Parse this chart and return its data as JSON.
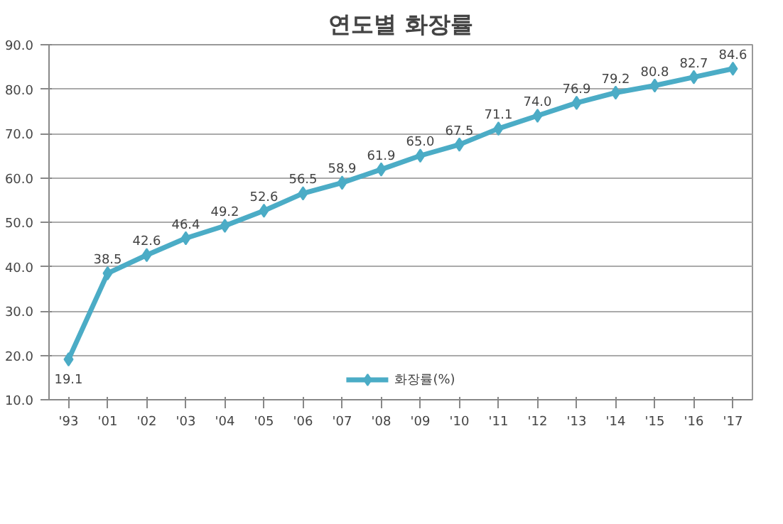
{
  "chart_data": {
    "type": "line",
    "title": "연도별 화장률",
    "categories": [
      "'93",
      "'01",
      "'02",
      "'03",
      "'04",
      "'05",
      "'06",
      "'07",
      "'08",
      "'09",
      "'10",
      "'11",
      "'12",
      "'13",
      "'14",
      "'15",
      "'16",
      "'17"
    ],
    "series": [
      {
        "name": "화장률(%)",
        "color": "#4bacc6",
        "values": [
          19.1,
          38.5,
          42.6,
          46.4,
          49.2,
          52.6,
          56.5,
          58.9,
          61.9,
          65.0,
          67.5,
          71.1,
          74.0,
          76.9,
          79.2,
          80.8,
          82.7,
          84.6
        ],
        "value_labels": [
          "19.1",
          "38.5",
          "42.6",
          "46.4",
          "49.2",
          "52.6",
          "56.5",
          "58.9",
          "61.9",
          "65.0",
          "67.5",
          "71.1",
          "74.0",
          "76.9",
          "79.2",
          "80.8",
          "82.7",
          "84.6"
        ]
      }
    ],
    "ylim": [
      10,
      90
    ],
    "yticks": [
      {
        "value": 10,
        "label": "10.0"
      },
      {
        "value": 20,
        "label": "20.0"
      },
      {
        "value": 30,
        "label": "30.0"
      },
      {
        "value": 40,
        "label": "40.0"
      },
      {
        "value": 50,
        "label": "50.0"
      },
      {
        "value": 60,
        "label": "60.0"
      },
      {
        "value": 70,
        "label": "70.0"
      },
      {
        "value": 80,
        "label": "80.0"
      },
      {
        "value": 90,
        "label": "90.0"
      }
    ],
    "grid": "y",
    "legend": "bottom",
    "marker": "diamond",
    "line_style": "solid"
  }
}
